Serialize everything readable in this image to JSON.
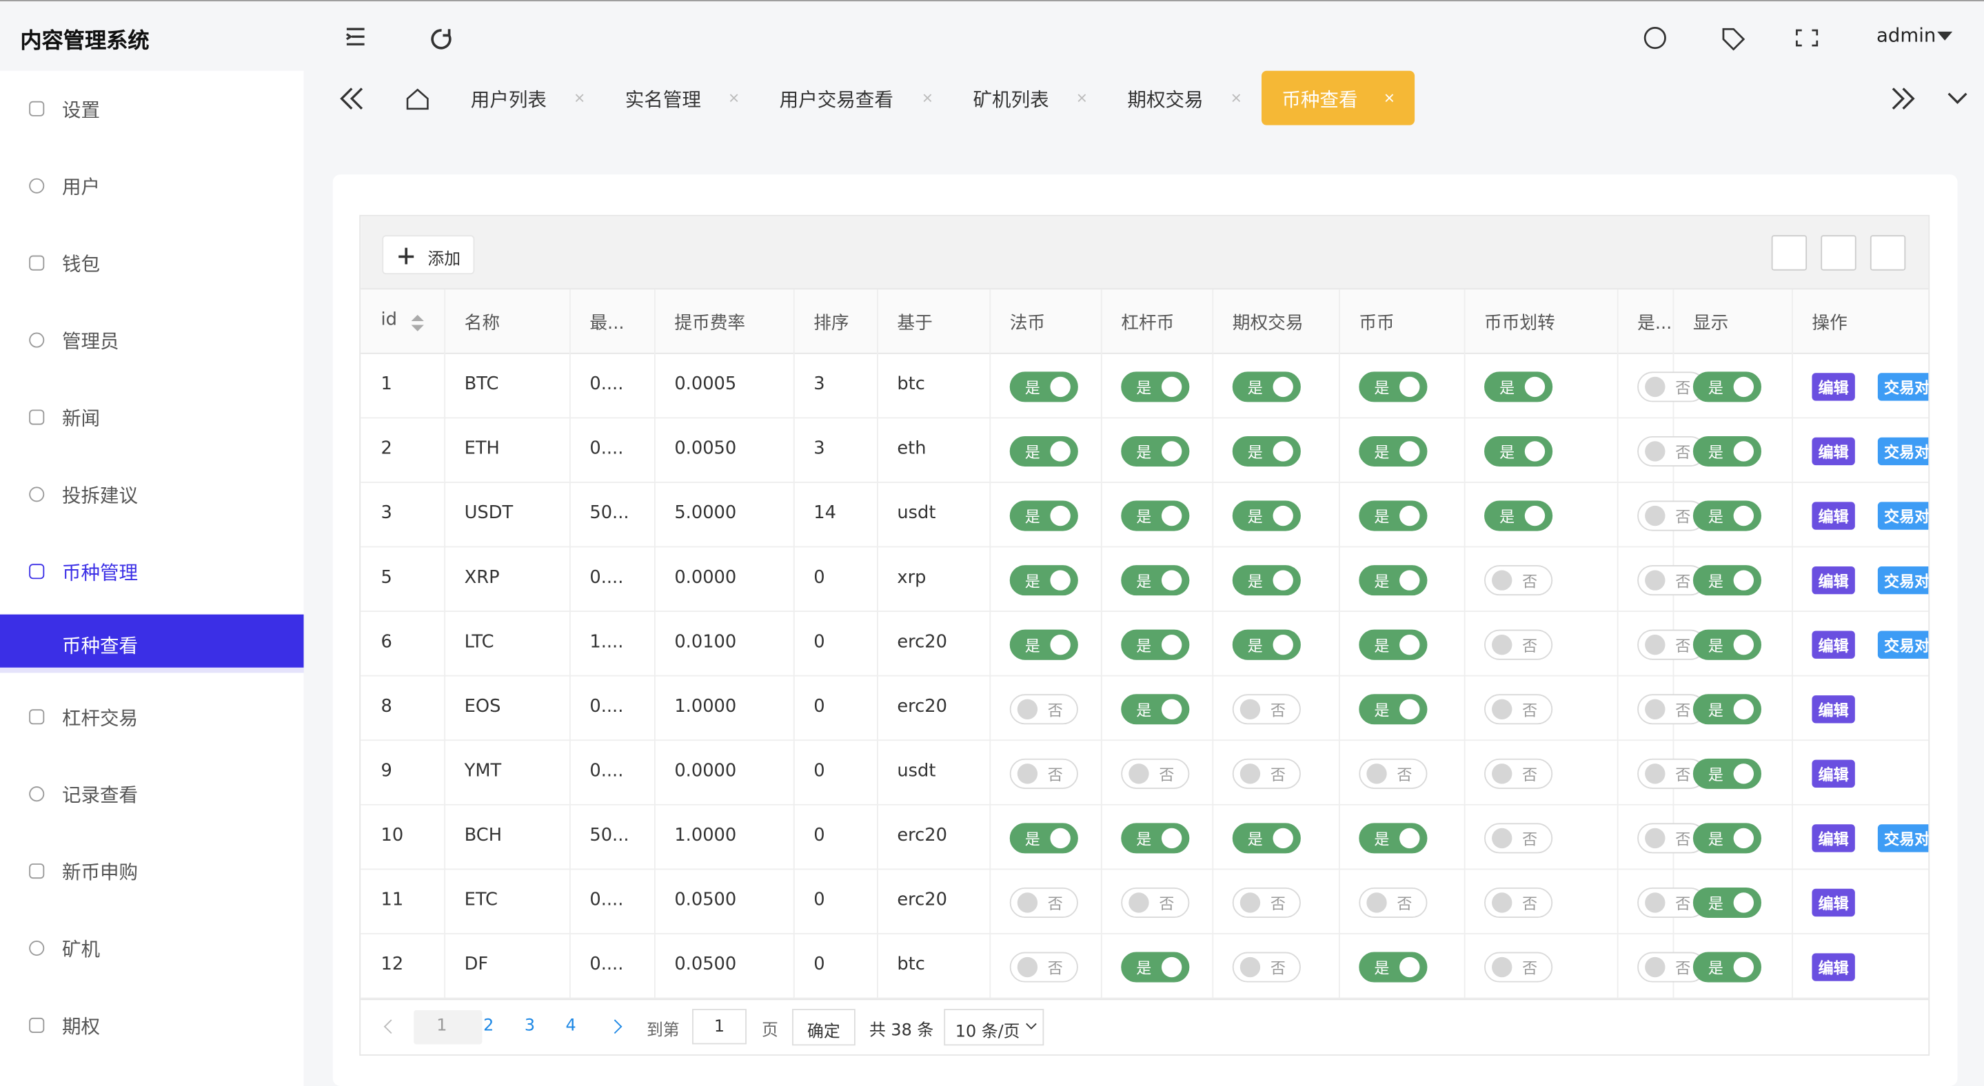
{
  "header": {
    "title": "内容管理系统",
    "user": "admin"
  },
  "sidebar": {
    "items": [
      "设置",
      "用户",
      "钱包",
      "管理员",
      "新闻",
      "投拆建议",
      "币种管理",
      "币种查看",
      "杠杆交易",
      "记录查看",
      "新币申购",
      "矿机",
      "期权"
    ]
  },
  "tabs": [
    "用户列表",
    "实名管理",
    "用户交易查看",
    "矿机列表",
    "期权交易",
    "币种查看"
  ],
  "toolbar": {
    "add": "添加"
  },
  "table": {
    "columns": [
      "id",
      "名称",
      "最...",
      "提币费率",
      "排序",
      "基于",
      "法币",
      "杠杆币",
      "期权交易",
      "币币",
      "币币划转",
      "是...",
      "显示",
      "操作"
    ],
    "rows": [
      {
        "cells": [
          "1",
          "BTC",
          "0....",
          "0.0005",
          "3",
          "btc"
        ],
        "switches": [
          "是",
          "是",
          "是",
          "是",
          "是",
          "否",
          "是"
        ],
        "actions": [
          "编辑",
          "交易对"
        ]
      },
      {
        "cells": [
          "2",
          "ETH",
          "0....",
          "0.0050",
          "3",
          "eth"
        ],
        "switches": [
          "是",
          "是",
          "是",
          "是",
          "是",
          "否",
          "是"
        ],
        "actions": [
          "编辑",
          "交易对"
        ]
      },
      {
        "cells": [
          "3",
          "USDT",
          "50...",
          "5.0000",
          "14",
          "usdt"
        ],
        "switches": [
          "是",
          "是",
          "是",
          "是",
          "是",
          "否",
          "是"
        ],
        "actions": [
          "编辑",
          "交易对"
        ]
      },
      {
        "cells": [
          "5",
          "XRP",
          "0....",
          "0.0000",
          "0",
          "xrp"
        ],
        "switches": [
          "是",
          "是",
          "是",
          "是",
          "否",
          "否",
          "是"
        ],
        "actions": [
          "编辑",
          "交易对"
        ]
      },
      {
        "cells": [
          "6",
          "LTC",
          "1....",
          "0.0100",
          "0",
          "erc20"
        ],
        "switches": [
          "是",
          "是",
          "是",
          "是",
          "否",
          "否",
          "是"
        ],
        "actions": [
          "编辑",
          "交易对"
        ]
      },
      {
        "cells": [
          "8",
          "EOS",
          "0....",
          "1.0000",
          "0",
          "erc20"
        ],
        "switches": [
          "否",
          "是",
          "否",
          "是",
          "否",
          "否",
          "是"
        ],
        "actions": [
          "编辑"
        ]
      },
      {
        "cells": [
          "9",
          "YMT",
          "0....",
          "0.0000",
          "0",
          "usdt"
        ],
        "switches": [
          "否",
          "否",
          "否",
          "否",
          "否",
          "否",
          "是"
        ],
        "actions": [
          "编辑"
        ]
      },
      {
        "cells": [
          "10",
          "BCH",
          "50...",
          "1.0000",
          "0",
          "erc20"
        ],
        "switches": [
          "是",
          "是",
          "是",
          "是",
          "否",
          "否",
          "是"
        ],
        "actions": [
          "编辑",
          "交易对"
        ]
      },
      {
        "cells": [
          "11",
          "ETC",
          "0....",
          "0.0500",
          "0",
          "erc20"
        ],
        "switches": [
          "否",
          "否",
          "否",
          "否",
          "否",
          "否",
          "是"
        ],
        "actions": [
          "编辑"
        ]
      },
      {
        "cells": [
          "12",
          "DF",
          "0....",
          "0.0500",
          "0",
          "btc"
        ],
        "switches": [
          "否",
          "是",
          "否",
          "是",
          "否",
          "否",
          "是"
        ],
        "actions": [
          "编辑"
        ]
      }
    ]
  },
  "pagination": {
    "pages": [
      "1",
      "2",
      "3",
      "4"
    ],
    "goto": "到第",
    "page_input": "1",
    "page_unit": "页",
    "confirm": "确定",
    "total": "共 38 条",
    "page_size": "10 条/页"
  }
}
